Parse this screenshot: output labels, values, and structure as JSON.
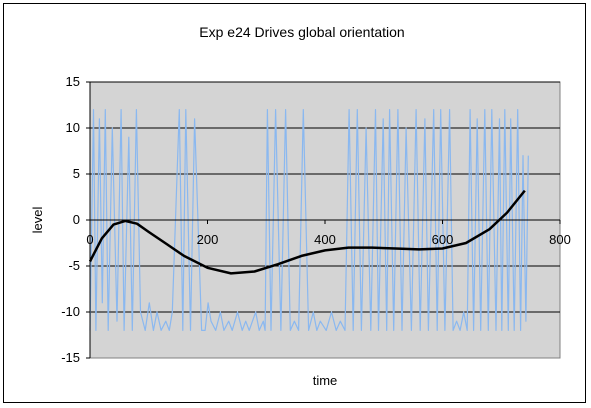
{
  "chart_data": {
    "type": "line",
    "title": "Exp e24 Drives global orientation",
    "xlabel": "time",
    "ylabel": "level",
    "xlim": [
      0,
      800
    ],
    "ylim": [
      -15,
      15
    ],
    "x_ticks": [
      0,
      200,
      400,
      600,
      800
    ],
    "y_ticks": [
      15,
      10,
      5,
      0,
      -5,
      -10,
      -15
    ],
    "plot_background": "#d4d4d4",
    "grid": "horizontal",
    "legend": "none",
    "series": [
      {
        "color": "#8ab8f0",
        "style": "rapid square-wave oscillation between about -12 and 12",
        "x": [
          0,
          6,
          10,
          16,
          21,
          26,
          31,
          38,
          46,
          53,
          58,
          66,
          72,
          79,
          86,
          94,
          101,
          108,
          114,
          121,
          129,
          135,
          140,
          152,
          158,
          163,
          171,
          178,
          190,
          196,
          201,
          206,
          214,
          222,
          228,
          236,
          242,
          251,
          259,
          265,
          271,
          282,
          288,
          295,
          298,
          302,
          308,
          316,
          325,
          333,
          341,
          348,
          355,
          363,
          372,
          380,
          386,
          392,
          402,
          411,
          419,
          426,
          434,
          441,
          448,
          455,
          462,
          470,
          478,
          486,
          491,
          499,
          505,
          510,
          517,
          524,
          531,
          538,
          547,
          555,
          562,
          570,
          576,
          585,
          591,
          597,
          604,
          612,
          618,
          624,
          630,
          636,
          642,
          647,
          653,
          659,
          665,
          672,
          678,
          684,
          691,
          697,
          701,
          706,
          712,
          716,
          722,
          728,
          733,
          737,
          742,
          746
        ],
        "y": [
          -12,
          12,
          -12,
          11,
          -9,
          12,
          -12,
          10,
          -11,
          12,
          -12,
          9,
          -12,
          12,
          -10,
          -12,
          -9,
          -12,
          -10,
          -12,
          -11,
          -12,
          -10,
          12,
          -12,
          12,
          -12,
          11,
          -12,
          -12,
          -9,
          -11,
          -12,
          -10,
          -12,
          -11,
          -12,
          -10,
          -12,
          -11,
          -12,
          -10,
          -12,
          -11,
          -12,
          12,
          -12,
          12,
          -12,
          12,
          -12,
          -11,
          -12,
          12,
          -12,
          -10,
          -12,
          -11,
          -12,
          -10,
          -12,
          -11,
          -12,
          12,
          -12,
          12,
          -12,
          10,
          -12,
          12,
          -12,
          11,
          -12,
          12,
          -12,
          12,
          -12,
          10,
          -12,
          12,
          -12,
          11,
          -12,
          12,
          -12,
          12,
          -12,
          12,
          -12,
          -11,
          -12,
          -10,
          -12,
          12,
          -12,
          11,
          -12,
          12,
          -12,
          12,
          -12,
          11,
          -12,
          12,
          -12,
          11,
          -12,
          12,
          -12,
          7,
          -11,
          7
        ]
      },
      {
        "color": "#000000",
        "style": "smooth polynomial trend line",
        "x": [
          0,
          20,
          40,
          60,
          80,
          100,
          130,
          160,
          200,
          240,
          280,
          320,
          360,
          400,
          440,
          480,
          520,
          560,
          600,
          640,
          680,
          710,
          740
        ],
        "y": [
          -4.5,
          -2,
          -0.5,
          -0.1,
          -0.4,
          -1.3,
          -2.6,
          -3.9,
          -5.2,
          -5.8,
          -5.6,
          -4.8,
          -3.9,
          -3.3,
          -3.0,
          -3.0,
          -3.1,
          -3.2,
          -3.1,
          -2.5,
          -1.0,
          0.8,
          3.2
        ]
      }
    ]
  }
}
